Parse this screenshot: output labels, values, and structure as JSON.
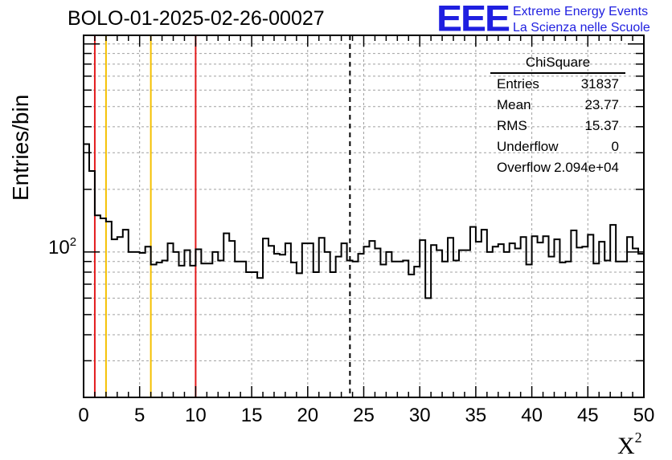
{
  "header": {
    "run_title": "BOLO-01-2025-02-26-00027",
    "logo_text": "EEE",
    "logo_line1": "Extreme Energy Events",
    "logo_line2": "La Scienza nelle Scuole"
  },
  "stats_box": {
    "title": "ChiSquare",
    "rows": [
      {
        "label": "Entries",
        "value": "31837"
      },
      {
        "label": "Mean",
        "value": "23.77"
      },
      {
        "label": "RMS",
        "value": "15.37"
      },
      {
        "label": "Underflow",
        "value": "0"
      },
      {
        "label": "Overflow",
        "value": "2.094e+04"
      }
    ]
  },
  "colors": {
    "histogram": "#000000",
    "red_line": "#e31a1c",
    "orange_line": "#f5c000",
    "grid": "#a0a0a0",
    "logo": "#1f1fe0"
  },
  "chart_data": {
    "type": "histogram",
    "title": "BOLO-01-2025-02-26-00027",
    "xlabel": "X",
    "xlabel_superscript": "2",
    "ylabel": "Entries/bin",
    "y_scale": "log",
    "xlim": [
      0,
      50
    ],
    "ylim": [
      20,
      1100
    ],
    "x_ticks": [
      0,
      5,
      10,
      15,
      20,
      25,
      30,
      35,
      40,
      45,
      50
    ],
    "y_tick_label": "10",
    "y_tick_label_exponent": "2",
    "grid": true,
    "bin_width": 0.5,
    "bin_values": [
      330,
      245,
      150,
      145,
      140,
      115,
      118,
      128,
      100,
      100,
      99,
      106,
      87,
      89,
      91,
      110,
      100,
      86,
      102,
      86,
      103,
      88,
      88,
      100,
      91,
      123,
      113,
      90,
      90,
      80,
      80,
      75,
      116,
      107,
      98,
      97,
      110,
      89,
      79,
      110,
      110,
      80,
      117,
      100,
      80,
      95,
      110,
      91,
      90,
      98,
      106,
      113,
      104,
      87,
      100,
      90,
      90,
      91,
      78,
      85,
      114,
      60,
      108,
      102,
      90,
      117,
      91,
      102,
      102,
      132,
      112,
      128,
      100,
      106,
      109,
      100,
      110,
      104,
      118,
      87,
      119,
      111,
      119,
      95,
      115,
      89,
      90,
      127,
      105,
      106,
      121,
      88,
      112,
      91,
      135,
      90,
      90,
      118,
      104,
      98
    ],
    "vertical_lines": [
      {
        "x": 1,
        "color": "red",
        "style": "solid"
      },
      {
        "x": 2,
        "color": "orange",
        "style": "solid"
      },
      {
        "x": 6,
        "color": "orange",
        "style": "solid"
      },
      {
        "x": 10,
        "color": "red",
        "style": "solid"
      },
      {
        "x": 23.77,
        "color": "black",
        "style": "dashed"
      }
    ],
    "legend": "top-right stats box"
  }
}
